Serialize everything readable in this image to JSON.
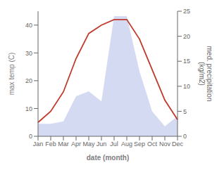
{
  "chart_data": {
    "type": "line",
    "xlabel": "date (month)",
    "ylabel": "max temp (C)",
    "y2label": "med. precipitation\n(kg/m2)",
    "categories": [
      "Jan",
      "Feb",
      "Mar",
      "Apr",
      "May",
      "Jun",
      "Jul",
      "Aug",
      "Sep",
      "Oct",
      "Nov",
      "Dec"
    ],
    "series": [
      {
        "type": "area",
        "axis": "y2",
        "color": "#b0bce8",
        "values": [
          2.5,
          2.5,
          3,
          8,
          9,
          7,
          24,
          24,
          13,
          5,
          2,
          4
        ]
      },
      {
        "type": "line",
        "color": "#c0392b",
        "values": [
          5,
          9,
          16,
          28,
          37,
          40,
          42,
          42,
          35,
          24,
          13,
          6
        ]
      }
    ],
    "ylim": [
      0,
      45
    ],
    "yticks": [
      0,
      10,
      20,
      30,
      40
    ],
    "y2lim": [
      0,
      25
    ],
    "y2ticks": [
      0,
      5,
      10,
      15,
      20,
      25
    ],
    "grid": false
  }
}
